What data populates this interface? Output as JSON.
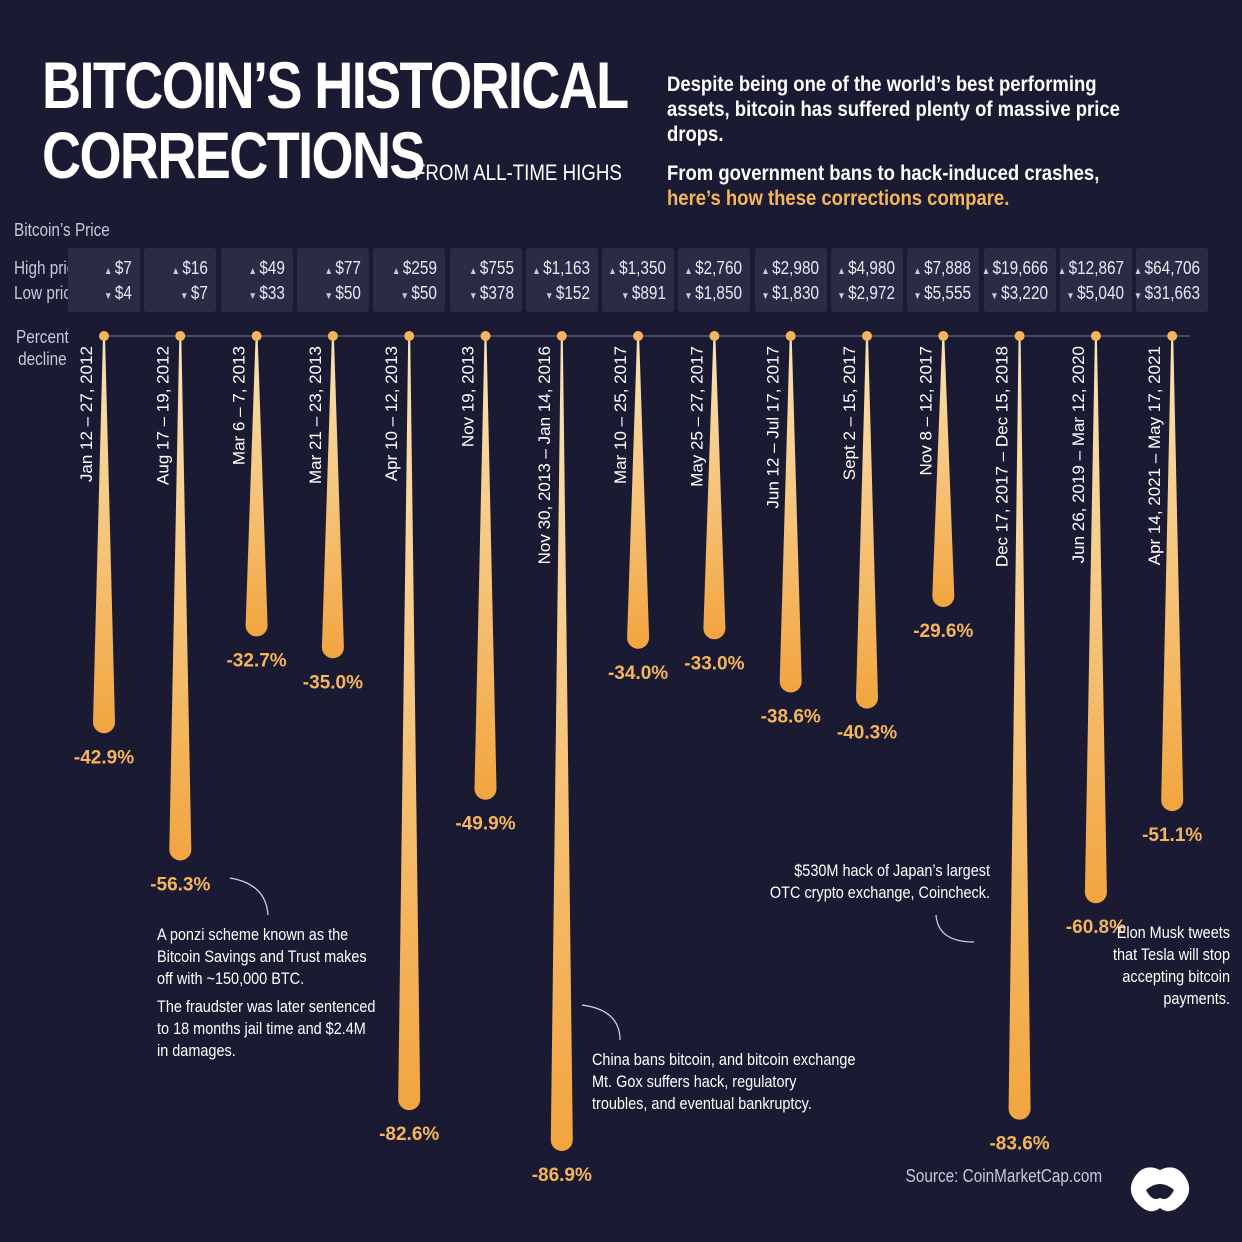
{
  "header": {
    "title_line1": "BITCOIN’S HISTORICAL",
    "title_line2": "CORRECTIONS",
    "title_suffix": "FROM ALL-TIME HIGHS",
    "intro_1": "Despite being one of the world’s best performing assets, bitcoin has suffered plenty of massive price drops.",
    "intro_2a": "From government bans to hack-induced crashes,",
    "intro_2b": "here’s how these corrections compare."
  },
  "labels": {
    "section": "Bitcoin’s Price",
    "high_row": "High price",
    "low_row": "Low price",
    "percent_line1": "Percent",
    "percent_line2": "decline"
  },
  "colors": {
    "background": "#1b1a33",
    "accent": "#f5b55a",
    "drop_top": "#f7d8a0",
    "drop_bottom": "#f3a33c",
    "box": "#2c2b46"
  },
  "chart_data": {
    "type": "bar",
    "ylabel": "Percent decline",
    "categories": [
      "Jan 12 – 27, 2012",
      "Aug 17 – 19, 2012",
      "Mar 6 – 7, 2013",
      "Mar 21 – 23, 2013",
      "Apr 10 – 12, 2013",
      "Nov 19, 2013",
      "Nov 30, 2013 – Jan 14, 2016",
      "Mar 10 – 25, 2017",
      "May 25 – 27, 2017",
      "Jun 12 – Jul 17, 2017",
      "Sept 2 – 15, 2017",
      "Nov 8 – 12, 2017",
      "Dec 17, 2017 – Dec 15, 2018",
      "Jun 26, 2019 – Mar 12, 2020",
      "Apr 14,  2021 – May 17, 2021"
    ],
    "values": [
      -42.9,
      -56.3,
      -32.7,
      -35.0,
      -82.6,
      -49.9,
      -86.9,
      -34.0,
      -33.0,
      -38.6,
      -40.3,
      -29.6,
      -83.6,
      -60.8,
      -51.1
    ],
    "value_labels": [
      "-42.9%",
      "-56.3%",
      "-32.7%",
      "-35.0%",
      "-82.6%",
      "-49.9%",
      "-86.9%",
      "-34.0%",
      "-33.0%",
      "-38.6%",
      "-40.3%",
      "-29.6%",
      "-83.6%",
      "-60.8%",
      "-51.1%"
    ],
    "high_price": [
      "$7",
      "$16",
      "$49",
      "$77",
      "$259",
      "$755",
      "$1,163",
      "$1,350",
      "$2,760",
      "$2,980",
      "$4,980",
      "$7,888",
      "$19,666",
      "$12,867",
      "$64,706"
    ],
    "low_price": [
      "$4",
      "$7",
      "$33",
      "$50",
      "$50",
      "$378",
      "$152",
      "$891",
      "$1,850",
      "$1,830",
      "$2,972",
      "$5,555",
      "$3,220",
      "$5,040",
      "$31,663"
    ]
  },
  "annotations": {
    "ponzi_1": "A ponzi scheme known as the Bitcoin Savings and Trust makes off with ~150,000 BTC.",
    "ponzi_2": "The fraudster was later sentenced to 18 months jail time and $2.4M in damages.",
    "china": "China bans bitcoin, and bitcoin exchange Mt. Gox suffers hack, regulatory troubles, and eventual bankruptcy.",
    "coincheck": "$530M hack of Japan’s largest OTC crypto exchange, Coincheck.",
    "musk": "Elon Musk tweets that Tesla will stop accepting bitcoin payments."
  },
  "footer": {
    "source": "Source: CoinMarketCap.com",
    "logo_icon": "publisher-logo-icon"
  }
}
